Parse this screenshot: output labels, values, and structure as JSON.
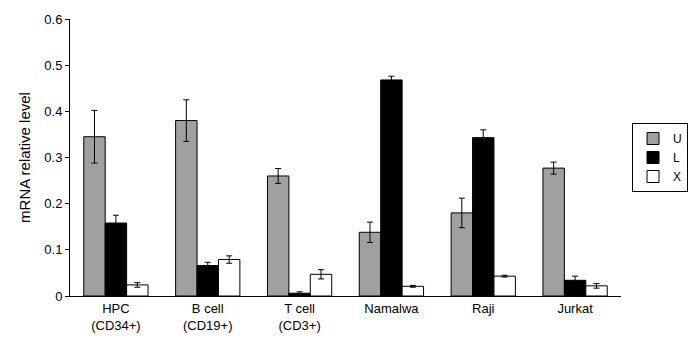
{
  "chart_data": {
    "type": "bar",
    "categories": [
      "HPC\n(CD34+)",
      "B cell\n(CD19+)",
      "T cell\n(CD3+)",
      "Namalwa",
      "Raji",
      "Jurkat"
    ],
    "y_label": "mRNA relative level",
    "ylim": [
      0,
      0.6
    ],
    "yticks": [
      0,
      0.1,
      0.2,
      0.3,
      0.4,
      0.5,
      0.6
    ],
    "grid": false,
    "legend": "right",
    "series": [
      {
        "name": "U",
        "color": "#a0a0a0",
        "values": [
          0.345,
          0.38,
          0.26,
          0.138,
          0.18,
          0.277
        ],
        "error": [
          0.057,
          0.045,
          0.016,
          0.022,
          0.032,
          0.013
        ]
      },
      {
        "name": "L",
        "color": "#000000",
        "values": [
          0.158,
          0.066,
          0.006,
          0.468,
          0.343,
          0.034
        ],
        "error": [
          0.017,
          0.007,
          0.003,
          0.008,
          0.017,
          0.009
        ]
      },
      {
        "name": "X",
        "color": "#ffffff",
        "values": [
          0.024,
          0.079,
          0.047,
          0.021,
          0.043,
          0.022
        ],
        "error": [
          0.005,
          0.008,
          0.01,
          0.002,
          0.002,
          0.005
        ]
      }
    ]
  }
}
